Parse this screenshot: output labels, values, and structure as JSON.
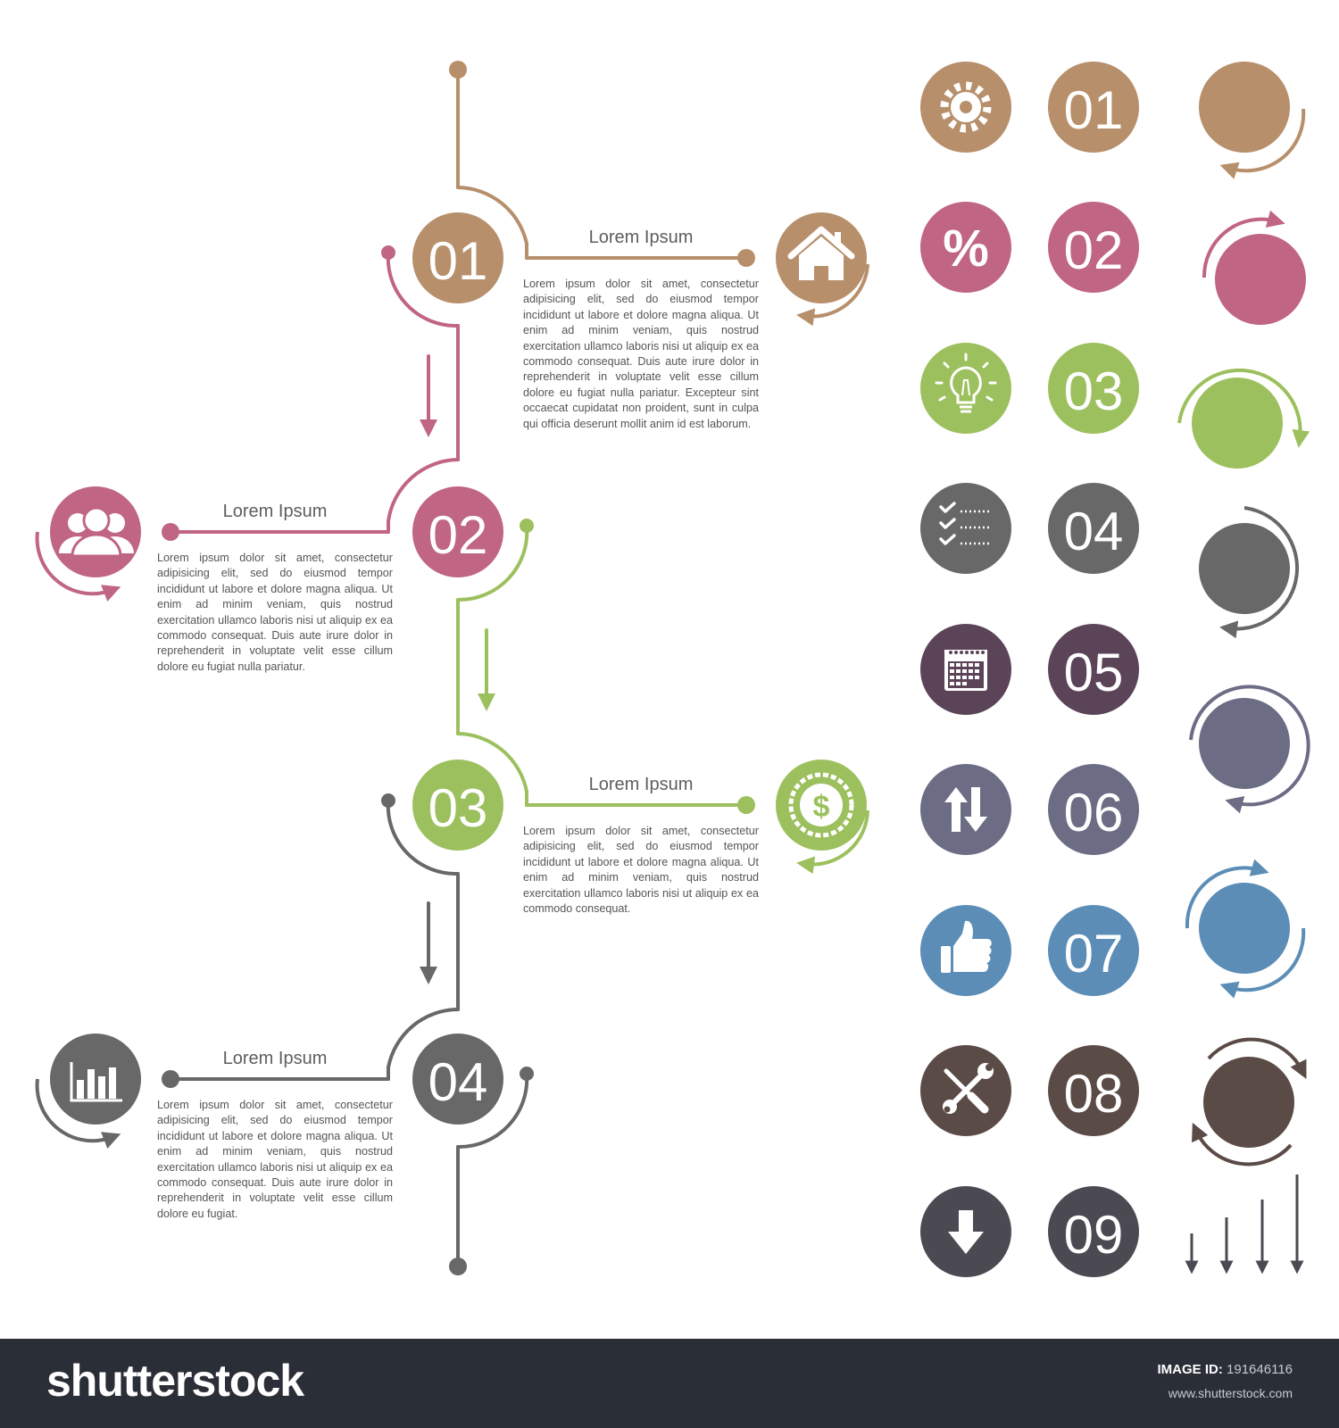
{
  "colors": {
    "brown": "#b78f6b",
    "pink": "#c06583",
    "green": "#9dc05e",
    "gray": "#686868",
    "plum": "#5b4458",
    "slate": "#6c6d85",
    "blue": "#5b8db6",
    "darkbrown": "#5b4b47",
    "charcoal": "#4b4a52",
    "footer": "#2a2e37"
  },
  "timeline": {
    "steps": [
      {
        "number": "01",
        "title": "Lorem Ipsum",
        "icon": "house-icon",
        "color": "brown",
        "text": "Lorem ipsum dolor sit amet, consectetur adipisicing elit, sed do eiusmod tempor incididunt ut labore et dolore magna aliqua. Ut enim ad minim veniam, quis nostrud exercitation ullamco laboris nisi ut aliquip ex ea commodo consequat. Duis aute irure dolor in reprehenderit in voluptate velit esse cillum dolore eu fugiat nulla pariatur. Excepteur sint occaecat cupidatat non proident, sunt in culpa qui officia deserunt mollit anim id est laborum."
      },
      {
        "number": "02",
        "title": "Lorem Ipsum",
        "icon": "people-icon",
        "color": "pink",
        "text": "Lorem ipsum dolor sit amet, consectetur adipisicing elit, sed do eiusmod tempor incididunt ut labore et dolore magna aliqua. Ut enim ad minim veniam, quis nostrud exercitation ullamco laboris nisi ut aliquip ex ea commodo consequat. Duis aute irure dolor in reprehenderit in voluptate velit esse cillum dolore eu fugiat nulla pariatur."
      },
      {
        "number": "03",
        "title": "Lorem Ipsum",
        "icon": "dollar-icon",
        "color": "green",
        "text": "Lorem ipsum dolor sit amet, consectetur adipisicing elit, sed do eiusmod tempor incididunt ut labore et dolore magna aliqua. Ut enim ad minim veniam, quis nostrud exercitation ullamco laboris nisi ut aliquip ex ea commodo consequat."
      },
      {
        "number": "04",
        "title": "Lorem Ipsum",
        "icon": "bar-chart-icon",
        "color": "gray",
        "text": "Lorem ipsum dolor sit amet, consectetur adipisicing elit, sed do eiusmod tempor incididunt ut labore et dolore magna aliqua. Ut enim ad minim veniam, quis nostrud exercitation ullamco laboris nisi ut aliquip ex ea commodo consequat. Duis aute irure dolor in reprehenderit in voluptate velit esse cillum dolore eu fugiat."
      }
    ]
  },
  "icon_set": [
    {
      "icon": "gear-icon",
      "number": "01",
      "color": "brown"
    },
    {
      "icon": "percent-icon",
      "number": "02",
      "color": "pink"
    },
    {
      "icon": "lightbulb-icon",
      "number": "03",
      "color": "green"
    },
    {
      "icon": "checklist-icon",
      "number": "04",
      "color": "gray"
    },
    {
      "icon": "calendar-icon",
      "number": "05",
      "color": "plum"
    },
    {
      "icon": "up-down-arrows-icon",
      "number": "06",
      "color": "slate"
    },
    {
      "icon": "thumbs-up-icon",
      "number": "07",
      "color": "blue"
    },
    {
      "icon": "tools-icon",
      "number": "08",
      "color": "darkbrown"
    },
    {
      "icon": "down-arrow-icon",
      "number": "09",
      "color": "charcoal"
    }
  ],
  "footer": {
    "brand": "shutterstock",
    "image_id_label": "IMAGE ID:",
    "image_id": "191646116",
    "site": "www.shutterstock.com"
  }
}
